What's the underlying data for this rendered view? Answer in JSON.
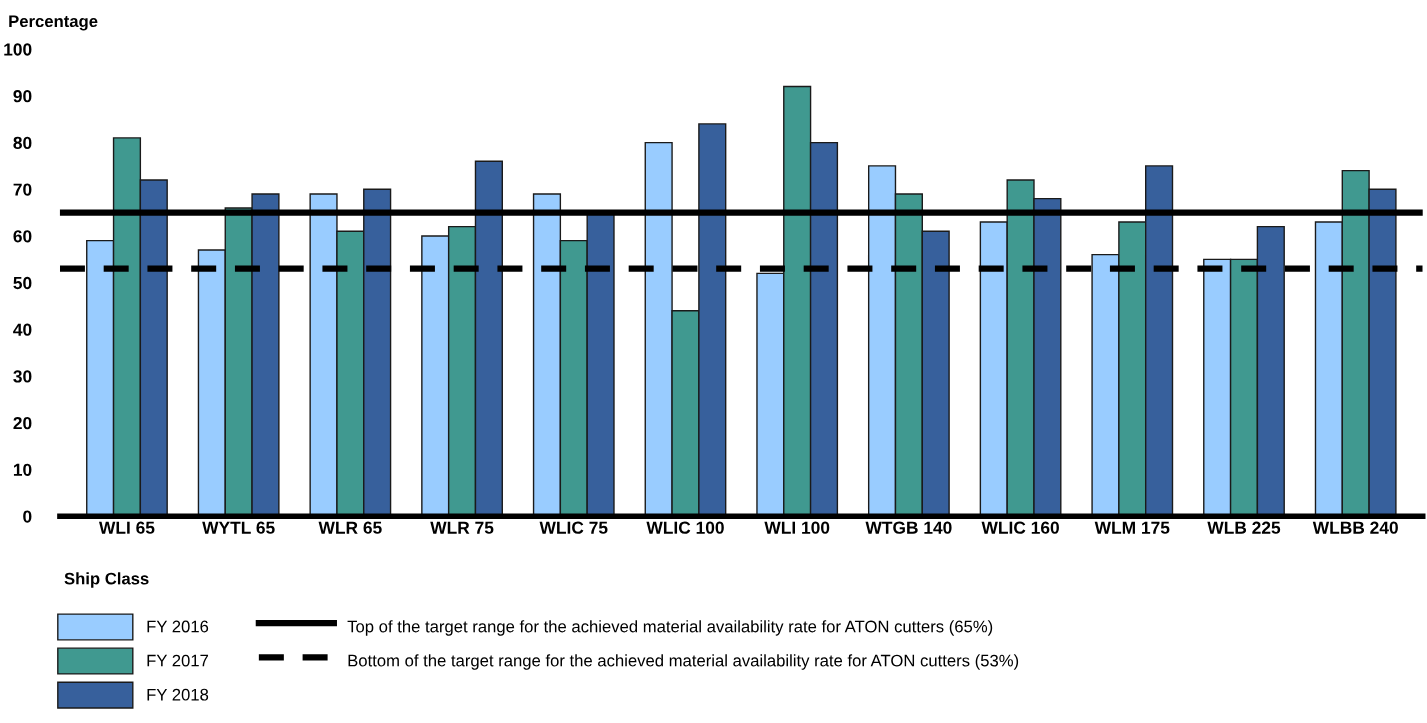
{
  "chart_data": {
    "type": "bar",
    "xlabel": "Ship Class",
    "ylabel": "Percentage",
    "categories": [
      "WLI 65",
      "WYTL 65",
      "WLR 65",
      "WLR 75",
      "WLIC 75",
      "WLIC 100",
      "WLI 100",
      "WTGB 140",
      "WLIC 160",
      "WLM 175",
      "WLB 225",
      "WLBB 240"
    ],
    "series": [
      {
        "name": "FY 2016",
        "color": "#99ccff",
        "values": [
          59,
          57,
          69,
          60,
          69,
          80,
          52,
          75,
          63,
          56,
          55,
          63
        ]
      },
      {
        "name": "FY 2017",
        "color": "#409990",
        "values": [
          81,
          66,
          61,
          62,
          59,
          44,
          92,
          69,
          72,
          63,
          55,
          74
        ]
      },
      {
        "name": "FY 2018",
        "color": "#37609c",
        "values": [
          72,
          69,
          70,
          76,
          65,
          84,
          80,
          61,
          68,
          75,
          62,
          70
        ]
      }
    ],
    "ylim": [
      0,
      100
    ],
    "yticks": [
      0,
      10,
      20,
      30,
      40,
      50,
      60,
      70,
      80,
      90,
      100
    ],
    "grid": false,
    "legend": "bottom",
    "ref_lines": [
      {
        "axis": "y",
        "value": 65,
        "label": "Top of the target range for the achieved material availability rate for ATON cutters (65%)",
        "color": "#000000",
        "line_style": "solid"
      },
      {
        "axis": "y",
        "value": 53,
        "label": "Bottom of the target range for the achieved material availability rate for ATON cutters (53%)",
        "color": "#000000",
        "line_style": "dashed"
      }
    ]
  }
}
